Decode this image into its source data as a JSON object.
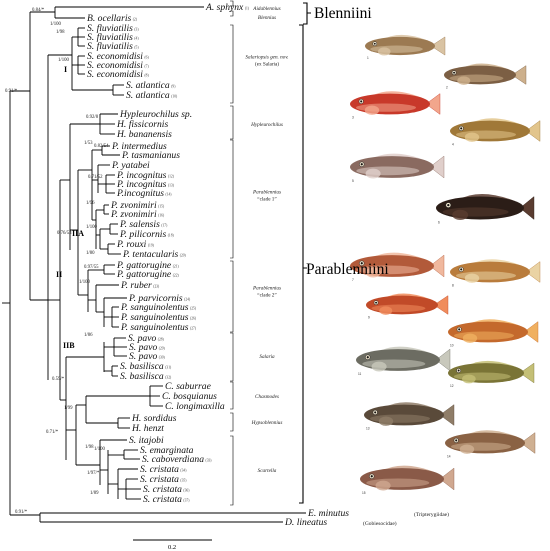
{
  "tribes": {
    "blenniini": "Blenniini",
    "parablenniini": "Parablenniini"
  },
  "node_labels": {
    "one": "I",
    "two": "II",
    "two_a": "IIA",
    "two_b": "IIB"
  },
  "scale_bar": {
    "label": "0.2"
  },
  "clades": [
    {
      "id": "aidablennius",
      "lines": [
        "Aidablennius"
      ],
      "italic": true
    },
    {
      "id": "blennius",
      "lines": [
        "Blennius"
      ],
      "italic": true
    },
    {
      "id": "salariopsis",
      "lines": [
        "Salariopsis gen. nov.",
        "(ex Salaria)"
      ],
      "italic": true
    },
    {
      "id": "hypleurochilus",
      "lines": [
        "Hypleurochilus"
      ],
      "italic": true
    },
    {
      "id": "parablennius1",
      "lines": [
        "Parablennius",
        "“clade 1”"
      ],
      "italic": true
    },
    {
      "id": "parablennius2",
      "lines": [
        "Parablennius",
        "“clade 2”"
      ],
      "italic": true
    },
    {
      "id": "salaria",
      "lines": [
        "Salaria"
      ],
      "italic": true
    },
    {
      "id": "chasmodes",
      "lines": [
        "Chasmodes"
      ],
      "italic": true
    },
    {
      "id": "hypsoblennius",
      "lines": [
        "Hypsoblennius"
      ],
      "italic": true
    },
    {
      "id": "scartella",
      "lines": [
        "Scartella"
      ],
      "italic": true
    }
  ],
  "taxa": [
    {
      "name": "A. sphynx",
      "sup": "(1)"
    },
    {
      "name": "B. ocellaris",
      "sup": "(2)"
    },
    {
      "name": "S. fluviatilis",
      "sup": "(3)"
    },
    {
      "name": "S. fluviatilis",
      "sup": "(4)"
    },
    {
      "name": "S. fluviatilis",
      "sup": "(5)"
    },
    {
      "name": "S. economidisi",
      "sup": "(6)"
    },
    {
      "name": "S. economidisi",
      "sup": "(7)"
    },
    {
      "name": "S. economidisi",
      "sup": "(8)"
    },
    {
      "name": "S. atlantica",
      "sup": "(9)"
    },
    {
      "name": "S. atlantica",
      "sup": "(10)"
    },
    {
      "name": "Hypleurochilus sp.",
      "sup": ""
    },
    {
      "name": "H. fissicornis",
      "sup": ""
    },
    {
      "name": "H. bananensis",
      "sup": ""
    },
    {
      "name": "P. intermedius",
      "sup": ""
    },
    {
      "name": "P. tasmanianus",
      "sup": ""
    },
    {
      "name": "P. yatabei",
      "sup": ""
    },
    {
      "name": "P. incognitus",
      "sup": "(12)"
    },
    {
      "name": "P. incognitus",
      "sup": "(13)"
    },
    {
      "name": "P.incognitus",
      "sup": "(14)"
    },
    {
      "name": "P. zvonimiri",
      "sup": "(15)"
    },
    {
      "name": "P. zvonimiri",
      "sup": "(16)"
    },
    {
      "name": "P. salensis",
      "sup": "(17)"
    },
    {
      "name": "P. pilicornis",
      "sup": "(18)"
    },
    {
      "name": "P. rouxi",
      "sup": "(19)"
    },
    {
      "name": "P. tentacularis",
      "sup": "(20)"
    },
    {
      "name": "P. gattorugine",
      "sup": "(21)"
    },
    {
      "name": "P. gattorugine",
      "sup": "(22)"
    },
    {
      "name": "P. ruber",
      "sup": "(23)"
    },
    {
      "name": "P. parvicornis",
      "sup": "(24)"
    },
    {
      "name": "P. sanguinolentus",
      "sup": "(25)"
    },
    {
      "name": "P. sanguinolentus",
      "sup": "(26)"
    },
    {
      "name": "P. sanguinolentus",
      "sup": "(27)"
    },
    {
      "name": "S. pavo",
      "sup": "(28)"
    },
    {
      "name": "S. pavo",
      "sup": "(29)"
    },
    {
      "name": "S. pavo",
      "sup": "(30)"
    },
    {
      "name": "S. basilisca",
      "sup": "(31)"
    },
    {
      "name": "S. basilisca",
      "sup": "(32)"
    },
    {
      "name": "C. saburrae",
      "sup": ""
    },
    {
      "name": "C. bosquianus",
      "sup": ""
    },
    {
      "name": "C. longimaxilla",
      "sup": ""
    },
    {
      "name": "H. sordidus",
      "sup": ""
    },
    {
      "name": "H. henzt",
      "sup": ""
    },
    {
      "name": "S. itajobi",
      "sup": ""
    },
    {
      "name": "S. emarginata",
      "sup": ""
    },
    {
      "name": "S. caboverdiana",
      "sup": "(33)"
    },
    {
      "name": "S. cristata",
      "sup": "(34)"
    },
    {
      "name": "S. cristata",
      "sup": "(35)"
    },
    {
      "name": "S. cristata",
      "sup": "(36)"
    },
    {
      "name": "S. cristata",
      "sup": "(37)"
    },
    {
      "name": "E. minutus",
      "sup": ""
    },
    {
      "name": "D. lineatus",
      "sup": ""
    }
  ],
  "outgroup_families": [
    "(Tripterygiidae)",
    "(Gobiesocidae)"
  ],
  "supports": [
    "0.84/*",
    "0.91/*",
    "1/100",
    "1/98",
    "1/100",
    "0.92/8",
    "1/53",
    "0.82/54",
    "0.71/52",
    "0.76/53",
    "1/96",
    "1/100",
    "1/80",
    "0.97/55",
    "1/100",
    "1/86",
    "0.59/*",
    "1/99",
    "0.71/*",
    "1/98",
    "1/100",
    "1/97/*",
    "1/89",
    "0.91/*"
  ],
  "photos": [
    {
      "n": "1",
      "color": "#9c7a52",
      "color2": "#d9c3a3"
    },
    {
      "n": "2",
      "color": "#7c5f44",
      "color2": "#cdb08c"
    },
    {
      "n": "3",
      "color": "#c8392a",
      "color2": "#f2a68c"
    },
    {
      "n": "4",
      "color": "#a07838",
      "color2": "#e2c58c"
    },
    {
      "n": "5",
      "color": "#8a6a60",
      "color2": "#e0cfcb"
    },
    {
      "n": "6",
      "color": "#2b1d17",
      "color2": "#5a3c30"
    },
    {
      "n": "7",
      "color": "#b25a3a",
      "color2": "#f0b89e"
    },
    {
      "n": "8",
      "color": "#b97c3c",
      "color2": "#ead3a4"
    },
    {
      "n": "9",
      "color": "#c14a28",
      "color2": "#f08c5c"
    },
    {
      "n": "10",
      "color": "#c4692c",
      "color2": "#f0b060"
    },
    {
      "n": "11",
      "color": "#6c6c62",
      "color2": "#c8c8bc"
    },
    {
      "n": "12",
      "color": "#7a7436",
      "color2": "#c4bf76"
    },
    {
      "n": "13",
      "color": "#5a4a3a",
      "color2": "#8f7d68"
    },
    {
      "n": "14",
      "color": "#8a6244",
      "color2": "#cfb092"
    },
    {
      "n": "15",
      "color": "#8a5a48",
      "color2": "#d0a890"
    }
  ]
}
